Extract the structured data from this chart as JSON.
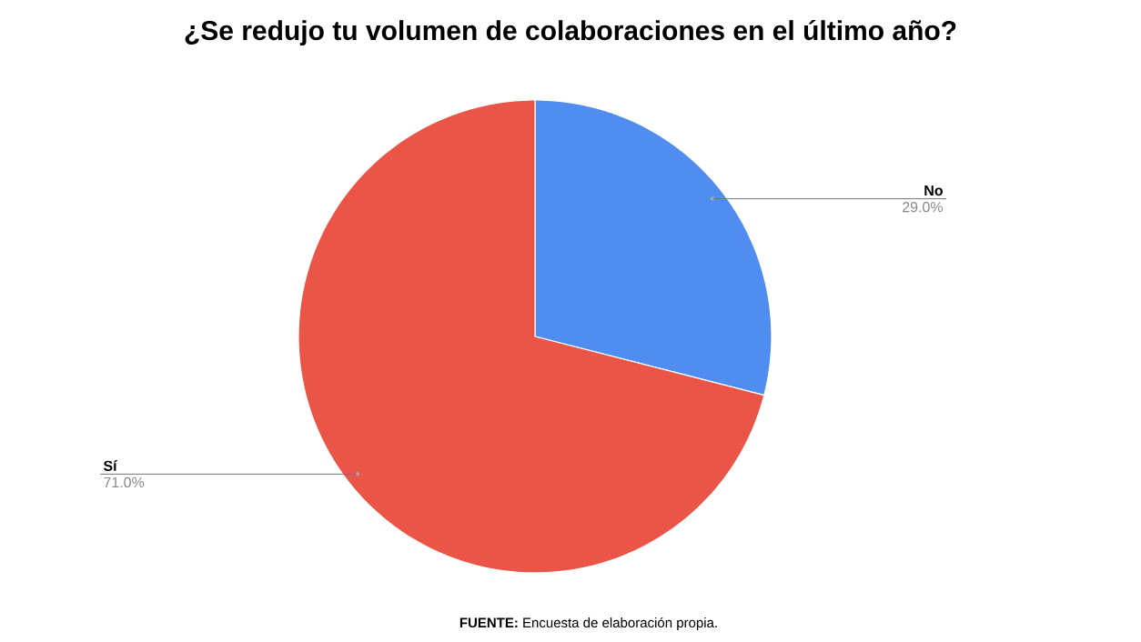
{
  "chart_data": {
    "type": "pie",
    "title": "¿Se redujo tu volumen de colaboraciones en el último año?",
    "categories": [
      "No",
      "Sí"
    ],
    "values": [
      29.0,
      71.0
    ],
    "colors": [
      "#4f8ef0",
      "#ea5548"
    ],
    "value_labels": [
      "29.0%",
      "71.0%"
    ],
    "annotations": [
      "**FUENTE:** Encuesta de elaboración propia."
    ]
  }
}
